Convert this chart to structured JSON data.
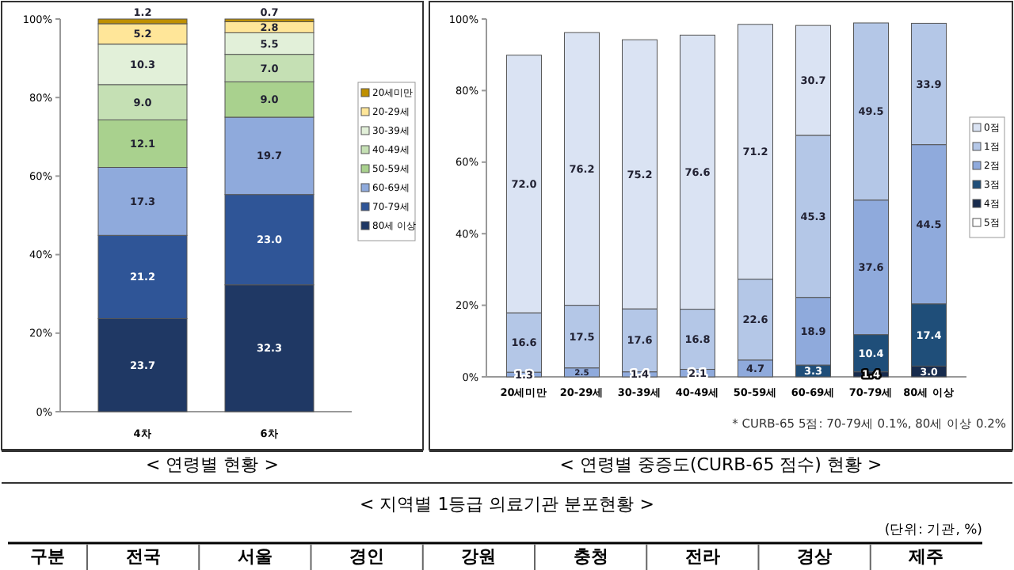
{
  "chart_data": [
    {
      "type": "bar",
      "stacked": true,
      "title": "< 연령별 현황 >",
      "categories": [
        "4차",
        "6차"
      ],
      "ylim": [
        0,
        100
      ],
      "yticks": [
        {
          "value": 0,
          "label": "0%"
        },
        {
          "value": 20,
          "label": "20%"
        },
        {
          "value": 40,
          "label": "40%"
        },
        {
          "value": 60,
          "label": "60%"
        },
        {
          "value": 80,
          "label": "80%"
        },
        {
          "value": 100,
          "label": "100%"
        }
      ],
      "legend": "right",
      "series": [
        {
          "name": "80세 이상",
          "color": "#1f3864",
          "values": [
            23.7,
            32.3
          ],
          "value_labels": [
            "23.7",
            "32.3"
          ]
        },
        {
          "name": "70-79세",
          "color": "#2f5597",
          "values": [
            21.2,
            23.0
          ],
          "value_labels": [
            "21.2",
            "23.0"
          ]
        },
        {
          "name": "60-69세",
          "color": "#8faadc",
          "values": [
            17.3,
            19.7
          ],
          "value_labels": [
            "17.3",
            "19.7"
          ]
        },
        {
          "name": "50-59세",
          "color": "#a9d18e",
          "values": [
            12.1,
            9.0
          ],
          "value_labels": [
            "12.1",
            "9.0"
          ]
        },
        {
          "name": "40-49세",
          "color": "#c5e0b4",
          "values": [
            9.0,
            7.0
          ],
          "value_labels": [
            "9.0",
            "7.0"
          ]
        },
        {
          "name": "30-39세",
          "color": "#e2f0d9",
          "values": [
            10.3,
            5.5
          ],
          "value_labels": [
            "10.3",
            "5.5"
          ]
        },
        {
          "name": "20-29세",
          "color": "#ffe699",
          "values": [
            5.2,
            2.8
          ],
          "value_labels": [
            "5.2",
            "2.8"
          ]
        },
        {
          "name": "20세미만",
          "color": "#bf9000",
          "values": [
            1.2,
            0.7
          ],
          "value_labels": [
            "1.2",
            "0.7"
          ]
        }
      ]
    },
    {
      "type": "bar",
      "stacked": true,
      "title": "< 연령별 중증도(CURB-65 점수) 현황 >",
      "annotations": [
        "* CURB-65 5점: 70-79세 0.1%, 80세 이상 0.2%"
      ],
      "categories": [
        "20세미만",
        "20-29세",
        "30-39세",
        "40-49세",
        "50-59세",
        "60-69세",
        "70-79세",
        "80세 이상"
      ],
      "ylim": [
        0,
        100
      ],
      "yticks": [
        {
          "value": 0,
          "label": "0%"
        },
        {
          "value": 20,
          "label": "20%"
        },
        {
          "value": 40,
          "label": "40%"
        },
        {
          "value": 60,
          "label": "60%"
        },
        {
          "value": 80,
          "label": "80%"
        },
        {
          "value": 100,
          "label": "100%"
        }
      ],
      "legend": "right",
      "series": [
        {
          "name": "5점",
          "color": "#ffffff",
          "values": [
            null,
            null,
            null,
            null,
            null,
            null,
            null,
            null
          ],
          "value_labels": [
            null,
            null,
            null,
            null,
            null,
            null,
            null,
            null
          ]
        },
        {
          "name": "4점",
          "color": "#172b4d",
          "values": [
            null,
            null,
            null,
            null,
            null,
            null,
            1.4,
            3.0
          ],
          "value_labels": [
            null,
            null,
            null,
            null,
            null,
            null,
            "1.4",
            "3.0"
          ]
        },
        {
          "name": "3점",
          "color": "#1f4e79",
          "values": [
            null,
            null,
            null,
            null,
            null,
            3.3,
            10.4,
            17.4
          ],
          "value_labels": [
            null,
            null,
            null,
            null,
            null,
            "3.3",
            "10.4",
            "17.4"
          ]
        },
        {
          "name": "2점",
          "color": "#8faadc",
          "values": [
            1.3,
            2.5,
            1.4,
            2.1,
            4.7,
            18.9,
            37.6,
            44.5
          ],
          "value_labels": [
            "1.3",
            "2.5",
            "1.4",
            "2.1",
            "4.7",
            "18.9",
            "37.6",
            "44.5"
          ]
        },
        {
          "name": "1점",
          "color": "#b4c7e7",
          "values": [
            16.6,
            17.5,
            17.6,
            16.8,
            22.6,
            45.3,
            49.5,
            33.9
          ],
          "value_labels": [
            "16.6",
            "17.5",
            "17.6",
            "16.8",
            "22.6",
            "45.3",
            "49.5",
            "33.9"
          ]
        },
        {
          "name": "0점",
          "color": "#dae3f3",
          "values": [
            72.0,
            76.2,
            75.2,
            76.6,
            71.2,
            30.7,
            null,
            null
          ],
          "value_labels": [
            "72.0",
            "76.2",
            "75.2",
            "76.6",
            "71.2",
            "30.7",
            null,
            null
          ]
        }
      ]
    },
    {
      "type": "other",
      "title": "< 지역별 1등급 의료기관 분포현황 >",
      "annotations": [
        "(단위: 기관, %)"
      ],
      "categories": [
        "구분",
        "전국",
        "서울",
        "경인",
        "강원",
        "충청",
        "전라",
        "경상",
        "제주"
      ]
    }
  ]
}
